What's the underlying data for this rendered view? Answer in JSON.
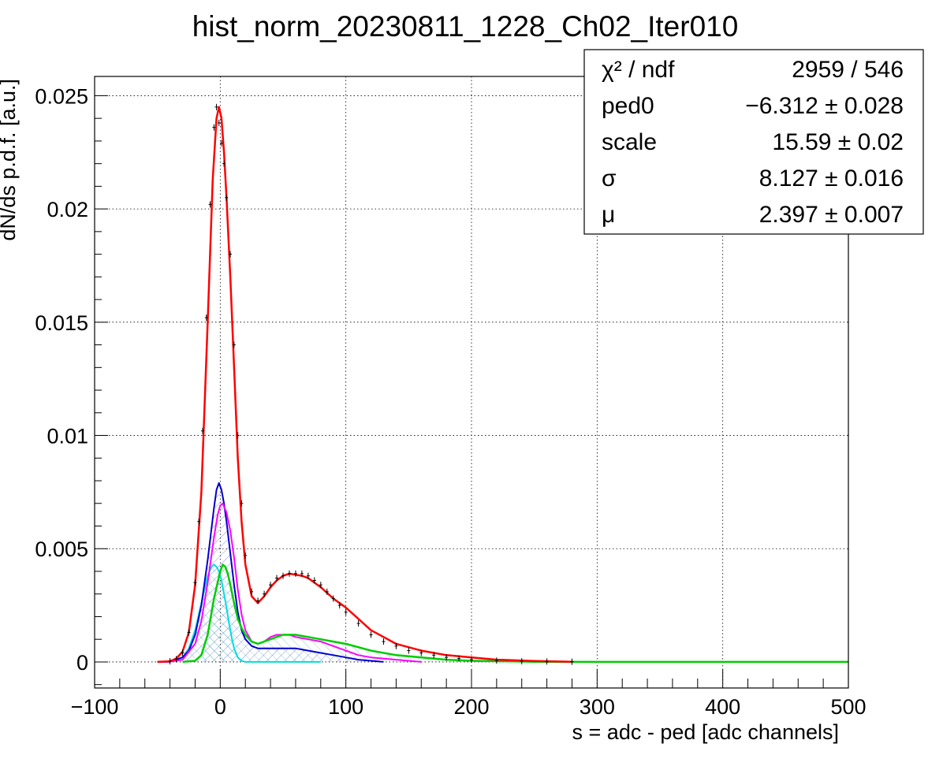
{
  "chart_data": {
    "type": "line",
    "title": "hist_norm_20230811_1228_Ch02_Iter010",
    "xlabel": "s = adc - ped [adc channels]",
    "ylabel": "dN/ds p.d.f. [a.u.]",
    "xlim": [
      -100,
      500
    ],
    "ylim": [
      -0.00115,
      0.02585
    ],
    "grid": true,
    "x_ticks": [
      -100,
      0,
      100,
      200,
      300,
      400,
      500
    ],
    "x_tick_labels": [
      "−100",
      "0",
      "100",
      "200",
      "300",
      "400",
      "500"
    ],
    "y_ticks": [
      0,
      0.005,
      0.01,
      0.015,
      0.02,
      0.025
    ],
    "y_tick_labels": [
      "0",
      "0.005",
      "0.01",
      "0.015",
      "0.02",
      "0.025"
    ],
    "stats_box": {
      "placement": "top-right",
      "rows": [
        {
          "name": "χ² / ndf",
          "value": "2959 / 546"
        },
        {
          "name": "ped0",
          "value": "−6.312 ± 0.028"
        },
        {
          "name": "scale",
          "value": "15.59 ± 0.02"
        },
        {
          "name": "σ",
          "value": "8.127 ± 0.016"
        },
        {
          "name": "μ",
          "value": "2.397 ± 0.007"
        }
      ]
    },
    "series": [
      {
        "role": "data-points",
        "color": "#000000",
        "x": [
          -40,
          -35,
          -30,
          -25,
          -20,
          -17,
          -14,
          -11,
          -8,
          -5,
          -3,
          -1,
          1,
          3,
          5,
          8,
          11,
          14,
          17,
          20,
          25,
          30,
          35,
          40,
          45,
          50,
          55,
          60,
          65,
          70,
          75,
          80,
          85,
          90,
          95,
          100,
          110,
          120,
          130,
          140,
          150,
          160,
          170,
          180,
          190,
          200,
          220,
          240,
          260,
          280
        ],
        "y": [
          3e-05,
          0.00012,
          0.0004,
          0.0013,
          0.0035,
          0.0062,
          0.0102,
          0.0152,
          0.0202,
          0.0236,
          0.0245,
          0.0238,
          0.0229,
          0.022,
          0.0205,
          0.018,
          0.014,
          0.01,
          0.007,
          0.0047,
          0.0031,
          0.0027,
          0.003,
          0.0034,
          0.0037,
          0.0038,
          0.0039,
          0.0039,
          0.0039,
          0.0038,
          0.0036,
          0.0034,
          0.0031,
          0.0028,
          0.0025,
          0.0022,
          0.0017,
          0.0012,
          0.0009,
          0.0007,
          0.0005,
          0.0004,
          0.0003,
          0.0002,
          0.00015,
          0.0001,
          6e-05,
          3e-05,
          2e-05,
          1e-05
        ]
      },
      {
        "role": "total-fit",
        "color": "#ff0000",
        "x": [
          -50,
          -40,
          -35,
          -30,
          -25,
          -20,
          -15,
          -10,
          -6,
          -3,
          -1,
          1,
          3,
          5,
          8,
          11,
          14,
          17,
          20,
          25,
          30,
          35,
          40,
          45,
          50,
          55,
          60,
          65,
          70,
          80,
          90,
          100,
          110,
          120,
          130,
          140,
          160,
          180,
          200,
          220,
          250,
          280
        ],
        "y": [
          0,
          3e-05,
          0.00015,
          0.00045,
          0.0013,
          0.0034,
          0.0075,
          0.015,
          0.0213,
          0.024,
          0.0245,
          0.024,
          0.0225,
          0.0205,
          0.017,
          0.013,
          0.009,
          0.0062,
          0.0043,
          0.0029,
          0.0026,
          0.0029,
          0.0033,
          0.0036,
          0.0038,
          0.0039,
          0.00385,
          0.0038,
          0.0037,
          0.0033,
          0.0028,
          0.0024,
          0.0019,
          0.0014,
          0.0011,
          0.0008,
          0.0005,
          0.0003,
          0.0002,
          0.0001,
          4e-05,
          1e-05
        ]
      },
      {
        "role": "component-1",
        "color": "#0000cc",
        "x": [
          -50,
          -40,
          -30,
          -25,
          -20,
          -15,
          -10,
          -5,
          -3,
          -1,
          1,
          3,
          5,
          8,
          11,
          14,
          17,
          20,
          25,
          30,
          40,
          50,
          60,
          70,
          80,
          90,
          100,
          110,
          120,
          130
        ],
        "y": [
          0,
          1e-05,
          0.0002,
          0.0005,
          0.0012,
          0.0025,
          0.0045,
          0.0068,
          0.0076,
          0.0079,
          0.0076,
          0.007,
          0.0062,
          0.0048,
          0.0034,
          0.0022,
          0.0014,
          0.001,
          0.0007,
          0.0006,
          0.0006,
          0.0006,
          0.0006,
          0.0005,
          0.0004,
          0.0003,
          0.0002,
          0.0001,
          5e-05,
          0
        ]
      },
      {
        "role": "component-2",
        "color": "#ff00ff",
        "x": [
          -50,
          -40,
          -30,
          -20,
          -15,
          -10,
          -5,
          -2,
          0,
          2,
          5,
          8,
          11,
          14,
          17,
          20,
          25,
          30,
          35,
          40,
          45,
          50,
          55,
          60,
          70,
          80,
          90,
          100,
          110,
          120,
          140,
          160
        ],
        "y": [
          0,
          1e-05,
          0.0001,
          0.0008,
          0.0018,
          0.0035,
          0.0055,
          0.0065,
          0.0069,
          0.007,
          0.0066,
          0.0058,
          0.0046,
          0.0032,
          0.0021,
          0.0014,
          0.0009,
          0.0008,
          0.0009,
          0.0011,
          0.0012,
          0.0012,
          0.0012,
          0.0011,
          0.001,
          0.0009,
          0.0007,
          0.0005,
          0.0003,
          0.0002,
          0.0001,
          0
        ]
      },
      {
        "role": "component-3",
        "color": "#00cc00",
        "x": [
          -30,
          -20,
          -15,
          -10,
          -5,
          0,
          2,
          4,
          6,
          8,
          11,
          14,
          17,
          20,
          25,
          30,
          35,
          40,
          45,
          50,
          55,
          60,
          70,
          80,
          90,
          100,
          120,
          140,
          160,
          180,
          200,
          250,
          300,
          400,
          500
        ],
        "y": [
          0,
          5e-05,
          0.0003,
          0.0012,
          0.0028,
          0.004,
          0.0043,
          0.0042,
          0.0039,
          0.0034,
          0.0026,
          0.0019,
          0.0015,
          0.0012,
          0.0009,
          0.0008,
          0.0009,
          0.001,
          0.0011,
          0.0012,
          0.0012,
          0.0012,
          0.0011,
          0.001,
          0.0009,
          0.0008,
          0.0005,
          0.0003,
          0.0002,
          0.0001,
          5e-05,
          1e-05,
          0,
          0,
          0
        ]
      },
      {
        "role": "component-4",
        "color": "#00dddd",
        "x": [
          -50,
          -40,
          -30,
          -25,
          -20,
          -15,
          -10,
          -7,
          -5,
          -3,
          -1,
          1,
          3,
          5,
          7,
          9,
          11,
          14,
          17,
          20,
          25,
          30,
          40,
          60,
          80
        ],
        "y": [
          0,
          1e-05,
          0.0002,
          0.0006,
          0.0014,
          0.0026,
          0.0038,
          0.0042,
          0.0043,
          0.0042,
          0.004,
          0.0036,
          0.003,
          0.0024,
          0.0017,
          0.0011,
          0.0006,
          0.0002,
          5e-05,
          0,
          0,
          0,
          0,
          0,
          0
        ]
      }
    ],
    "series_styles": {
      "total-fit": {
        "width": 2.5
      },
      "component-1": {
        "width": 2
      },
      "component-2": {
        "width": 2
      },
      "component-3": {
        "width": 2.5
      },
      "component-4": {
        "width": 2
      }
    }
  }
}
